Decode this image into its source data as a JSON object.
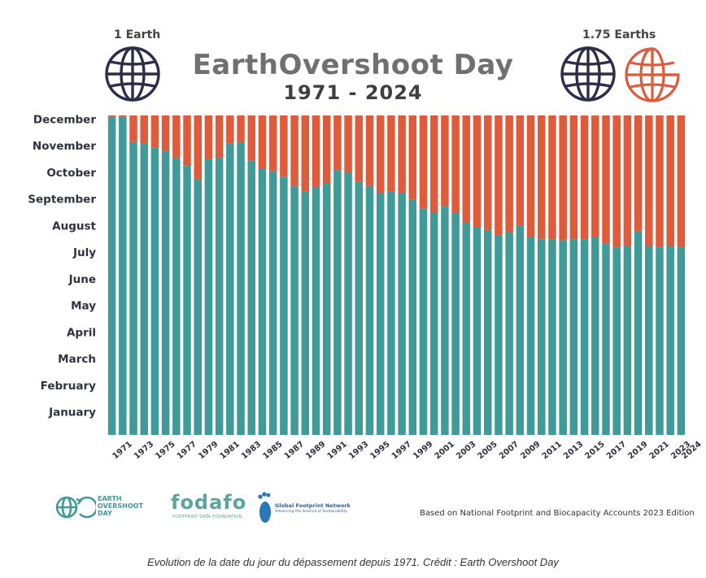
{
  "header": {
    "left_label": "1 Earth",
    "right_label": "1.75 Earths",
    "title": "EarthOvershoot Day",
    "subtitle": "1971 - 2024"
  },
  "colors": {
    "under": "#3f9a98",
    "over": "#de5b3c",
    "globe_left": "#2b2d4a",
    "globe_right": "#de5b3c"
  },
  "chart_data": {
    "type": "bar",
    "stacked": true,
    "title": "EarthOvershoot Day",
    "subtitle": "1971 - 2024",
    "x": [
      1971,
      1972,
      1973,
      1974,
      1975,
      1976,
      1977,
      1978,
      1979,
      1980,
      1981,
      1982,
      1983,
      1984,
      1985,
      1986,
      1987,
      1988,
      1989,
      1990,
      1991,
      1992,
      1993,
      1994,
      1995,
      1996,
      1997,
      1998,
      1999,
      2000,
      2001,
      2002,
      2003,
      2004,
      2005,
      2006,
      2007,
      2008,
      2009,
      2010,
      2011,
      2012,
      2013,
      2014,
      2015,
      2016,
      2017,
      2018,
      2019,
      2020,
      2021,
      2022,
      2023,
      2024
    ],
    "x_tick_labels": [
      "1971",
      "1973",
      "1975",
      "1977",
      "1979",
      "1981",
      "1983",
      "1985",
      "1987",
      "1989",
      "1991",
      "1993",
      "1995",
      "1997",
      "1999",
      "2001",
      "2003",
      "2005",
      "2007",
      "2009",
      "2011",
      "2013",
      "2015",
      "2017",
      "2019",
      "2021",
      "2023",
      "2024"
    ],
    "y_tick_labels": [
      "January",
      "February",
      "March",
      "April",
      "May",
      "June",
      "July",
      "August",
      "September",
      "October",
      "November",
      "December"
    ],
    "ylim": [
      0,
      12
    ],
    "series": [
      {
        "values": [
          11.95,
          11.95,
          11.0,
          10.95,
          10.8,
          10.65,
          10.4,
          10.1,
          9.6,
          10.35,
          10.4,
          10.95,
          11.0,
          10.3,
          10.0,
          9.9,
          9.7,
          9.35,
          9.15,
          9.3,
          9.45,
          9.95,
          9.85,
          9.5,
          9.35,
          9.1,
          9.15,
          9.1,
          8.85,
          8.5,
          8.35,
          8.6,
          8.35,
          8.0,
          7.8,
          7.7,
          7.5,
          7.6,
          7.85,
          7.45,
          7.35,
          7.35,
          7.3,
          7.35,
          7.35,
          7.45,
          7.2,
          7.05,
          7.1,
          7.65,
          7.1,
          7.05,
          7.1,
          7.05
        ]
      },
      {
        "values": [
          0.05,
          0.05,
          1.0,
          1.05,
          1.2,
          1.35,
          1.6,
          1.9,
          2.4,
          1.65,
          1.6,
          1.05,
          1.0,
          1.7,
          2.0,
          2.1,
          2.3,
          2.65,
          2.85,
          2.7,
          2.55,
          2.05,
          2.15,
          2.5,
          2.65,
          2.9,
          2.85,
          2.9,
          3.15,
          3.5,
          3.65,
          3.4,
          3.65,
          4.0,
          4.2,
          4.3,
          4.5,
          4.4,
          4.15,
          4.55,
          4.65,
          4.65,
          4.7,
          4.65,
          4.65,
          4.55,
          4.8,
          4.95,
          4.9,
          4.35,
          4.9,
          4.95,
          4.9,
          4.95
        ]
      }
    ]
  },
  "footer": {
    "logo1_line1": "EARTH",
    "logo1_line2": "OVERSHOOT",
    "logo1_line3": "DAY",
    "logo2_name": "fodafo",
    "logo2_sub": "FOOTPRINT DATA FOUNDATION",
    "logo3_name": "Global Footprint Network",
    "logo3_sub": "Advancing the Science of Sustainability",
    "source": "Based on National Footprint and Biocapacity Accounts 2023 Edition"
  },
  "caption": "Evolution de la date du jour du dépassement depuis 1971. Crédit : Earth Overshoot Day"
}
